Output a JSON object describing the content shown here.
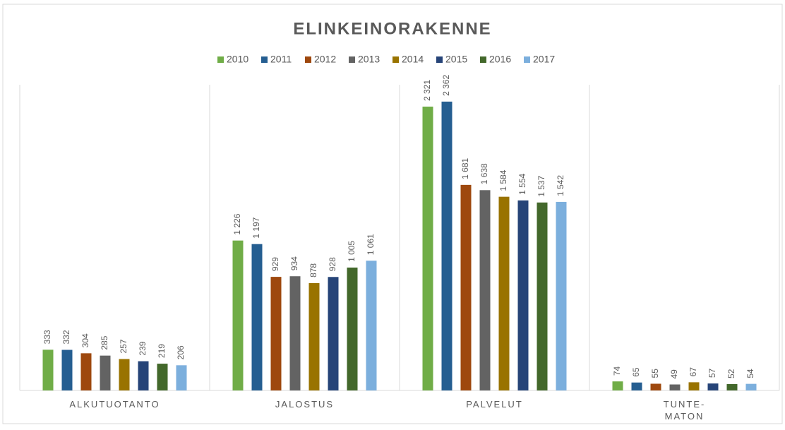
{
  "chart_data": {
    "type": "bar",
    "title": "ELINKEINORAKENNE",
    "categories": [
      "ALKUTUOTANTO",
      "JALOSTUS",
      "PALVELUT",
      "TUNTE-\nMATON"
    ],
    "series": [
      {
        "name": "2010",
        "color": "#70ad47",
        "values": [
          333,
          1226,
          2321,
          74
        ],
        "value_labels": [
          "333",
          "1 226",
          "2 321",
          "74"
        ]
      },
      {
        "name": "2011",
        "color": "#255e91",
        "values": [
          332,
          1197,
          2362,
          65
        ],
        "value_labels": [
          "332",
          "1 197",
          "2 362",
          "65"
        ]
      },
      {
        "name": "2012",
        "color": "#9e480e",
        "values": [
          304,
          929,
          1681,
          55
        ],
        "value_labels": [
          "304",
          "929",
          "1 681",
          "55"
        ]
      },
      {
        "name": "2013",
        "color": "#636363",
        "values": [
          285,
          934,
          1638,
          49
        ],
        "value_labels": [
          "285",
          "934",
          "1 638",
          "49"
        ]
      },
      {
        "name": "2014",
        "color": "#997300",
        "values": [
          257,
          878,
          1584,
          67
        ],
        "value_labels": [
          "257",
          "878",
          "1 584",
          "67"
        ]
      },
      {
        "name": "2015",
        "color": "#264478",
        "values": [
          239,
          928,
          1554,
          57
        ],
        "value_labels": [
          "239",
          "928",
          "1 554",
          "57"
        ]
      },
      {
        "name": "2016",
        "color": "#43682b",
        "values": [
          219,
          1005,
          1537,
          52
        ],
        "value_labels": [
          "219",
          "1 005",
          "1 537",
          "52"
        ]
      },
      {
        "name": "2017",
        "color": "#7cafdd",
        "values": [
          206,
          1061,
          1542,
          54
        ],
        "value_labels": [
          "206",
          "1 061",
          "1 542",
          "54"
        ]
      }
    ],
    "ylim": [
      0,
      2500
    ]
  }
}
